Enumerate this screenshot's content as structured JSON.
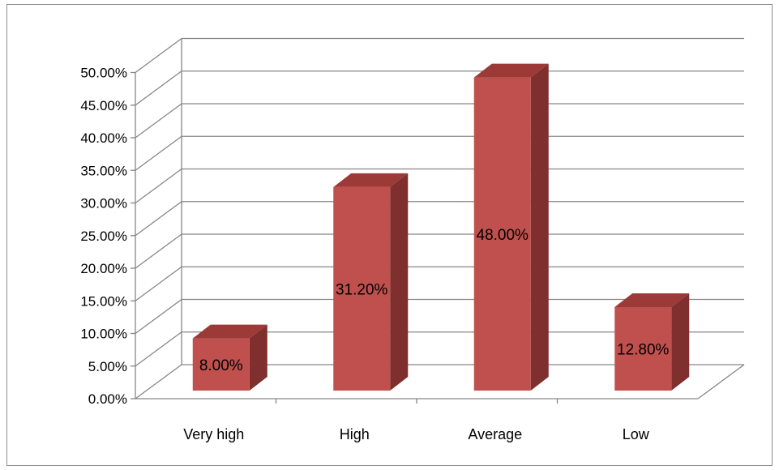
{
  "chart_data": {
    "type": "bar",
    "categories": [
      "Very high",
      "High",
      "Average",
      "Low"
    ],
    "values": [
      8.0,
      31.2,
      48.0,
      12.8
    ],
    "data_labels": [
      "8.00%",
      "31.20%",
      "48.00%",
      "12.80%"
    ],
    "title": "",
    "xlabel": "",
    "ylabel": "",
    "ylim": [
      0,
      50
    ],
    "y_ticks": [
      "0.00%",
      "5.00%",
      "10.00%",
      "15.00%",
      "20.00%",
      "25.00%",
      "30.00%",
      "35.00%",
      "40.00%",
      "45.00%",
      "50.00%"
    ],
    "grid": true,
    "legend": "none",
    "style": "3d-column",
    "colors": {
      "bar_front": "#c0504d",
      "bar_side": "#7f2f2d",
      "bar_top": "#9b3a37",
      "grid": "#868686",
      "axis": "#868686"
    }
  }
}
